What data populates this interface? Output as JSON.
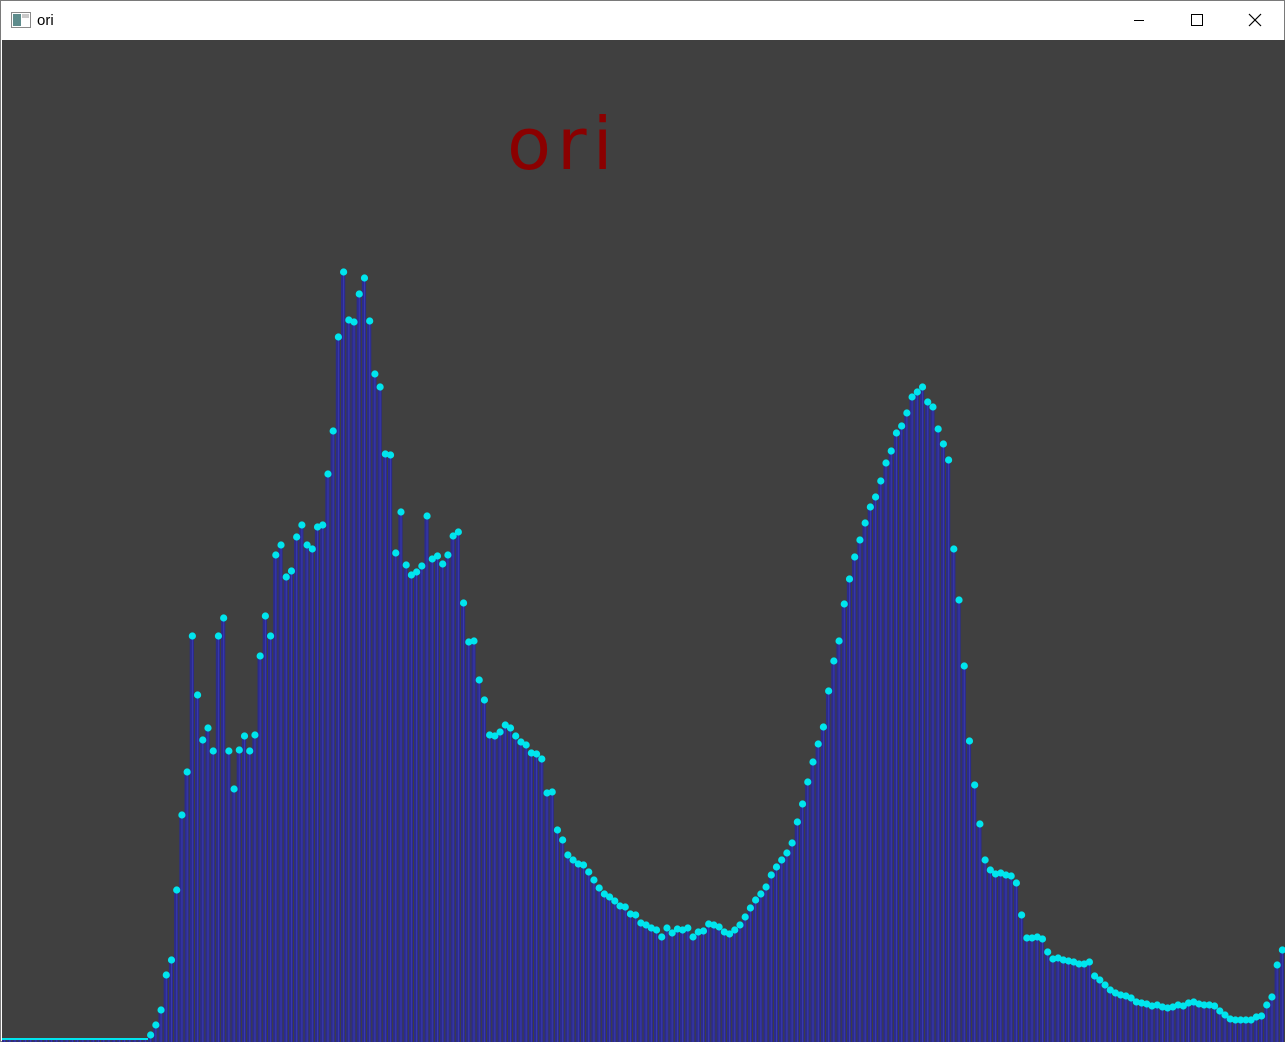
{
  "window": {
    "title": "ori",
    "icon": "app-window-icon",
    "controls": [
      "minimize-icon",
      "maximize-icon",
      "close-icon"
    ]
  },
  "chart_data": {
    "type": "bar",
    "title": "ori",
    "xlabel": "",
    "ylabel": "",
    "xlim": [
      0,
      255
    ],
    "ylim": [
      0,
      1000
    ],
    "grid": false,
    "colors": {
      "background": "#404040",
      "bar": "#2b2b8c",
      "marker": "#00e5ee",
      "title": "#8b0000"
    },
    "values": [
      2,
      2,
      2,
      2,
      2,
      2,
      2,
      2,
      2,
      2,
      2,
      2,
      2,
      2,
      2,
      2,
      2,
      2,
      2,
      2,
      2,
      2,
      2,
      2,
      2,
      2,
      2,
      2,
      5,
      15,
      30,
      65,
      80,
      150,
      225,
      268,
      404,
      345,
      300,
      312,
      289,
      404,
      422,
      289,
      251,
      290,
      304,
      289,
      305,
      384,
      424,
      404,
      485,
      495,
      463,
      469,
      503,
      515,
      495,
      491,
      513,
      515,
      566,
      609,
      703,
      768,
      720,
      718,
      746,
      762,
      719,
      666,
      653,
      586,
      585,
      487,
      528,
      475,
      465,
      468,
      474,
      524,
      481,
      484,
      476,
      485,
      504,
      508,
      437,
      398,
      399,
      360,
      340,
      305,
      304,
      308,
      315,
      312,
      304,
      298,
      295,
      287,
      286,
      281,
      247,
      248,
      210,
      200,
      185,
      180,
      176,
      175,
      168,
      160,
      152,
      146,
      143,
      139,
      134,
      133,
      126,
      125,
      117,
      115,
      112,
      110,
      103,
      112,
      107,
      111,
      110,
      112,
      103,
      108,
      109,
      116,
      115,
      113,
      108,
      106,
      110,
      115,
      123,
      132,
      140,
      146,
      153,
      165,
      173,
      180,
      187,
      197,
      218,
      236,
      258,
      278,
      296,
      313,
      349,
      379,
      399,
      436,
      461,
      483,
      500,
      517,
      533,
      543,
      559,
      577,
      589,
      607,
      614,
      627,
      643,
      648,
      653,
      638,
      633,
      611,
      596,
      580,
      491,
      440,
      374,
      299,
      255,
      216,
      180,
      170,
      166,
      167,
      165,
      164,
      157,
      125,
      102,
      102,
      103,
      101,
      88,
      81,
      82,
      80,
      79,
      78,
      76,
      76,
      78,
      64,
      60,
      55,
      50,
      47,
      45,
      44,
      42,
      38,
      37,
      36,
      34,
      35,
      33,
      32,
      33,
      35,
      34,
      37,
      38,
      36,
      35,
      35,
      34,
      29,
      25,
      21,
      20,
      20,
      20,
      20,
      23,
      24,
      35,
      43,
      75,
      90
    ]
  }
}
